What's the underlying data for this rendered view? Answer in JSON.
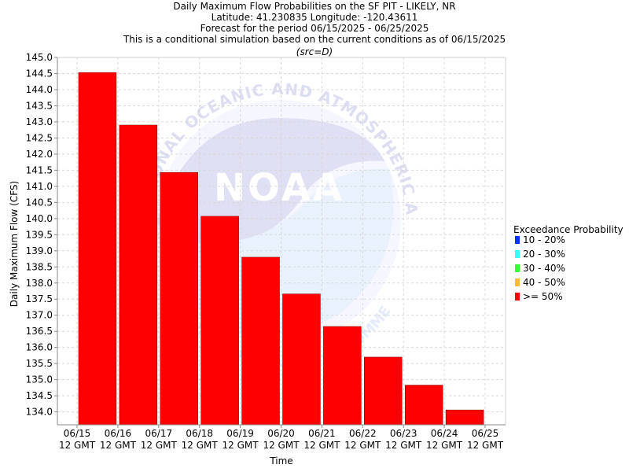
{
  "chart_data": {
    "type": "bar",
    "title_lines": [
      "Daily Maximum Flow Probabilities on the SF PIT - LIKELY, NR",
      "Latitude: 41.230835 Longitude: -120.43611",
      "Forecast for the period 06/15/2025 - 06/25/2025",
      "This is a conditional simulation based on the current conditions as of 06/15/2025"
    ],
    "source_note": "(src=D)",
    "xlabel": "Time",
    "ylabel": "Daily Maximum Flow (CFS)",
    "ylim": [
      133.6,
      145.0
    ],
    "y_ticks": [
      "134.0",
      "134.5",
      "135.0",
      "135.5",
      "136.0",
      "136.5",
      "137.0",
      "137.5",
      "138.0",
      "138.5",
      "139.0",
      "139.5",
      "140.0",
      "140.5",
      "141.0",
      "141.5",
      "142.0",
      "142.5",
      "143.0",
      "143.5",
      "144.0",
      "144.5",
      "145.0"
    ],
    "x_tick_labels": [
      [
        "06/15",
        "12 GMT"
      ],
      [
        "06/16",
        "12 GMT"
      ],
      [
        "06/17",
        "12 GMT"
      ],
      [
        "06/18",
        "12 GMT"
      ],
      [
        "06/19",
        "12 GMT"
      ],
      [
        "06/20",
        "12 GMT"
      ],
      [
        "06/21",
        "12 GMT"
      ],
      [
        "06/22",
        "12 GMT"
      ],
      [
        "06/23",
        "12 GMT"
      ],
      [
        "06/24",
        "12 GMT"
      ],
      [
        "06/25",
        "12 GMT"
      ]
    ],
    "series": [
      {
        "name": ">= 50%",
        "color": "#ff0000",
        "values": [
          144.53,
          142.9,
          141.43,
          140.07,
          138.8,
          137.66,
          136.65,
          135.7,
          134.83,
          134.06
        ]
      }
    ],
    "legend": {
      "title": "Exceedance Probability",
      "placement": "right",
      "items": [
        {
          "label": "10 - 20%",
          "color": "#0033ff"
        },
        {
          "label": "20 - 30%",
          "color": "#33ffff"
        },
        {
          "label": "30 - 40%",
          "color": "#33ff33"
        },
        {
          "label": "40 - 50%",
          "color": "#ffbb33"
        },
        {
          "label": ">= 50%",
          "color": "#ff0000"
        }
      ]
    },
    "grid": true,
    "watermark": {
      "logo_text": "NOAA",
      "ring_text": "NATIONAL OCEANIC AND ATMOSPHERIC ADMINISTRATION",
      "bottom_text": "U.S. DEPARTMENT OF COMMERCE"
    }
  }
}
